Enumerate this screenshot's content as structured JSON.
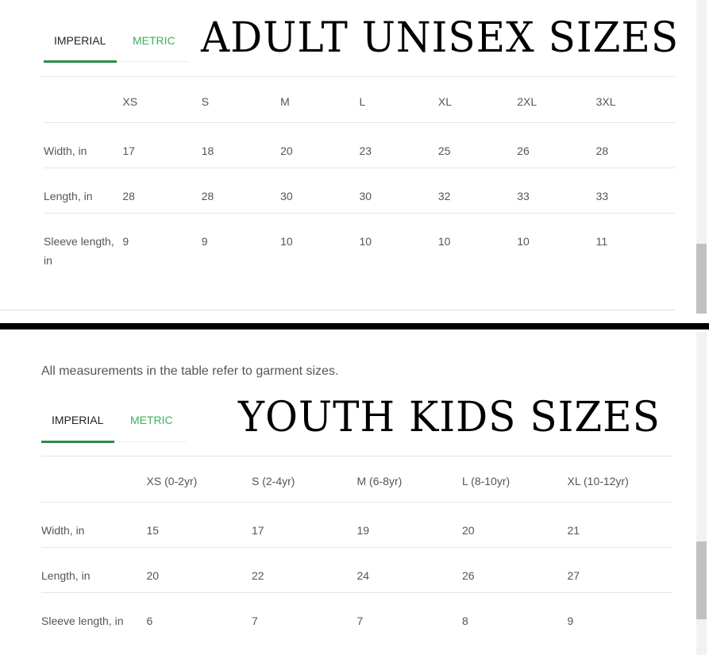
{
  "adult": {
    "heading": "ADULT UNISEX SIZES",
    "tabs": [
      {
        "label": "IMPERIAL",
        "active": true
      },
      {
        "label": "METRIC",
        "active": false
      }
    ],
    "columns": [
      "",
      "XS",
      "S",
      "M",
      "L",
      "XL",
      "2XL",
      "3XL"
    ],
    "rows": [
      {
        "label": "Width, in",
        "values": [
          "17",
          "18",
          "20",
          "23",
          "25",
          "26",
          "28"
        ]
      },
      {
        "label": "Length, in",
        "values": [
          "28",
          "28",
          "30",
          "30",
          "32",
          "33",
          "33"
        ]
      },
      {
        "label": "Sleeve length, in",
        "values": [
          "9",
          "9",
          "10",
          "10",
          "10",
          "10",
          "11"
        ]
      }
    ]
  },
  "youth": {
    "note": "All measurements in the table refer to garment sizes.",
    "heading": "YOUTH KIDS SIZES",
    "tabs": [
      {
        "label": "IMPERIAL",
        "active": true
      },
      {
        "label": "METRIC",
        "active": false
      }
    ],
    "columns": [
      "",
      "XS (0-2yr)",
      "S (2-4yr)",
      "M (6-8yr)",
      "L (8-10yr)",
      "XL (10-12yr)"
    ],
    "rows": [
      {
        "label": "Width, in",
        "values": [
          "15",
          "17",
          "19",
          "20",
          "21"
        ]
      },
      {
        "label": "Length, in",
        "values": [
          "20",
          "22",
          "24",
          "26",
          "27"
        ]
      },
      {
        "label": "Sleeve length, in",
        "values": [
          "6",
          "7",
          "7",
          "8",
          "9"
        ]
      }
    ]
  },
  "colors": {
    "accent": "#3bb05c",
    "underline": "#2e8b4a",
    "divider": "#000000"
  }
}
